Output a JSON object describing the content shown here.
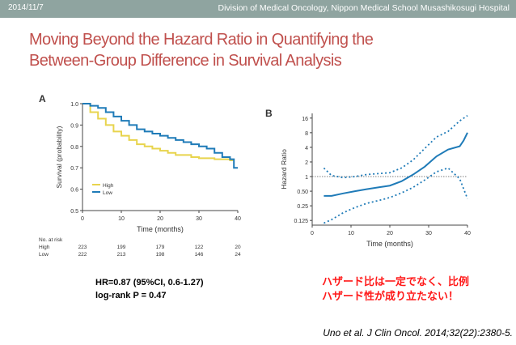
{
  "header": {
    "date": "2014/11/7",
    "affiliation": "Division of Medical Oncology, Nippon Medical School Musashikosugi Hospital"
  },
  "title": {
    "line1": "Moving Beyond the Hazard Ratio in Quantifying the",
    "line2": "Between-Group Difference in Survival Analysis"
  },
  "stats": {
    "hr": "HR=0.87 (95%CI, 0.6-1.27)",
    "logrank": "log-rank P = 0.47"
  },
  "note": {
    "line1": "ハザード比は一定でなく、比例",
    "line2": "ハザード性が成り立たない！"
  },
  "citation": "Uno et al. J Clin Oncol. 2014;32(22):2380-5.",
  "colors": {
    "high": "#e8d44d",
    "low": "#1f7bb8",
    "title": "#c0504d"
  },
  "chart_data": [
    {
      "type": "line",
      "panel": "A",
      "xlabel": "Time (months)",
      "ylabel": "Survival (probability)",
      "xlim": [
        0,
        40
      ],
      "ylim": [
        0.5,
        1.0
      ],
      "xticks": [
        "0",
        "10",
        "20",
        "30",
        "40"
      ],
      "yticks": [
        "0.5",
        "0.6",
        "0.7",
        "0.8",
        "0.9",
        "1.0"
      ],
      "series": [
        {
          "name": "High",
          "x": [
            0,
            2,
            4,
            6,
            8,
            10,
            12,
            14,
            16,
            18,
            20,
            22,
            24,
            26,
            28,
            30,
            32,
            34,
            36,
            38,
            39
          ],
          "y": [
            1.0,
            0.96,
            0.93,
            0.9,
            0.87,
            0.85,
            0.83,
            0.81,
            0.8,
            0.79,
            0.78,
            0.77,
            0.76,
            0.76,
            0.75,
            0.745,
            0.745,
            0.74,
            0.74,
            0.735,
            0.735
          ]
        },
        {
          "name": "Low",
          "x": [
            0,
            2,
            4,
            6,
            8,
            10,
            12,
            14,
            16,
            18,
            20,
            22,
            24,
            26,
            28,
            30,
            32,
            34,
            36,
            38,
            39,
            40
          ],
          "y": [
            1.0,
            0.99,
            0.98,
            0.96,
            0.94,
            0.92,
            0.9,
            0.88,
            0.87,
            0.86,
            0.85,
            0.84,
            0.83,
            0.82,
            0.81,
            0.8,
            0.79,
            0.77,
            0.75,
            0.74,
            0.7,
            0.7
          ]
        }
      ],
      "risk_table": {
        "label": "No. at risk",
        "rows": [
          {
            "name": "High",
            "values": [
              "223",
              "199",
              "179",
              "122",
              "20"
            ]
          },
          {
            "name": "Low",
            "values": [
              "222",
              "213",
              "198",
              "146",
              "24"
            ]
          }
        ]
      }
    },
    {
      "type": "line",
      "panel": "B",
      "xlabel": "Time (months)",
      "ylabel": "Hazard Ratio",
      "xlim": [
        0,
        40
      ],
      "yscale": "log2",
      "ylim": [
        0.1,
        20
      ],
      "xticks": [
        "0",
        "10",
        "20",
        "30",
        "40"
      ],
      "ytick_values": [
        0.125,
        0.25,
        0.5,
        1,
        2,
        4,
        8,
        16
      ],
      "yticks": [
        "0.125",
        "0.25",
        "0.50",
        "1",
        "2",
        "4",
        "8",
        "16"
      ],
      "reference_line": 1,
      "series": [
        {
          "name": "Estimate",
          "x": [
            3,
            5,
            8,
            11,
            14,
            17,
            20,
            23,
            26,
            29,
            32,
            35,
            38,
            39,
            40
          ],
          "y": [
            0.4,
            0.4,
            0.45,
            0.5,
            0.55,
            0.6,
            0.65,
            0.8,
            1.1,
            1.6,
            2.6,
            3.6,
            4.2,
            5.5,
            8
          ]
        },
        {
          "name": "Upper 95% CI",
          "x": [
            3,
            5,
            8,
            11,
            14,
            17,
            20,
            23,
            26,
            29,
            32,
            35,
            38,
            40
          ],
          "y": [
            1.5,
            1.05,
            0.95,
            1.0,
            1.1,
            1.15,
            1.2,
            1.5,
            2.2,
            3.8,
            6.5,
            8.5,
            14,
            18
          ]
        },
        {
          "name": "Lower 95% CI",
          "x": [
            3,
            5,
            8,
            11,
            14,
            17,
            20,
            23,
            26,
            29,
            32,
            35,
            38,
            40
          ],
          "y": [
            0.11,
            0.13,
            0.18,
            0.23,
            0.28,
            0.32,
            0.37,
            0.46,
            0.6,
            0.85,
            1.25,
            1.5,
            0.9,
            0.35
          ]
        }
      ]
    }
  ]
}
